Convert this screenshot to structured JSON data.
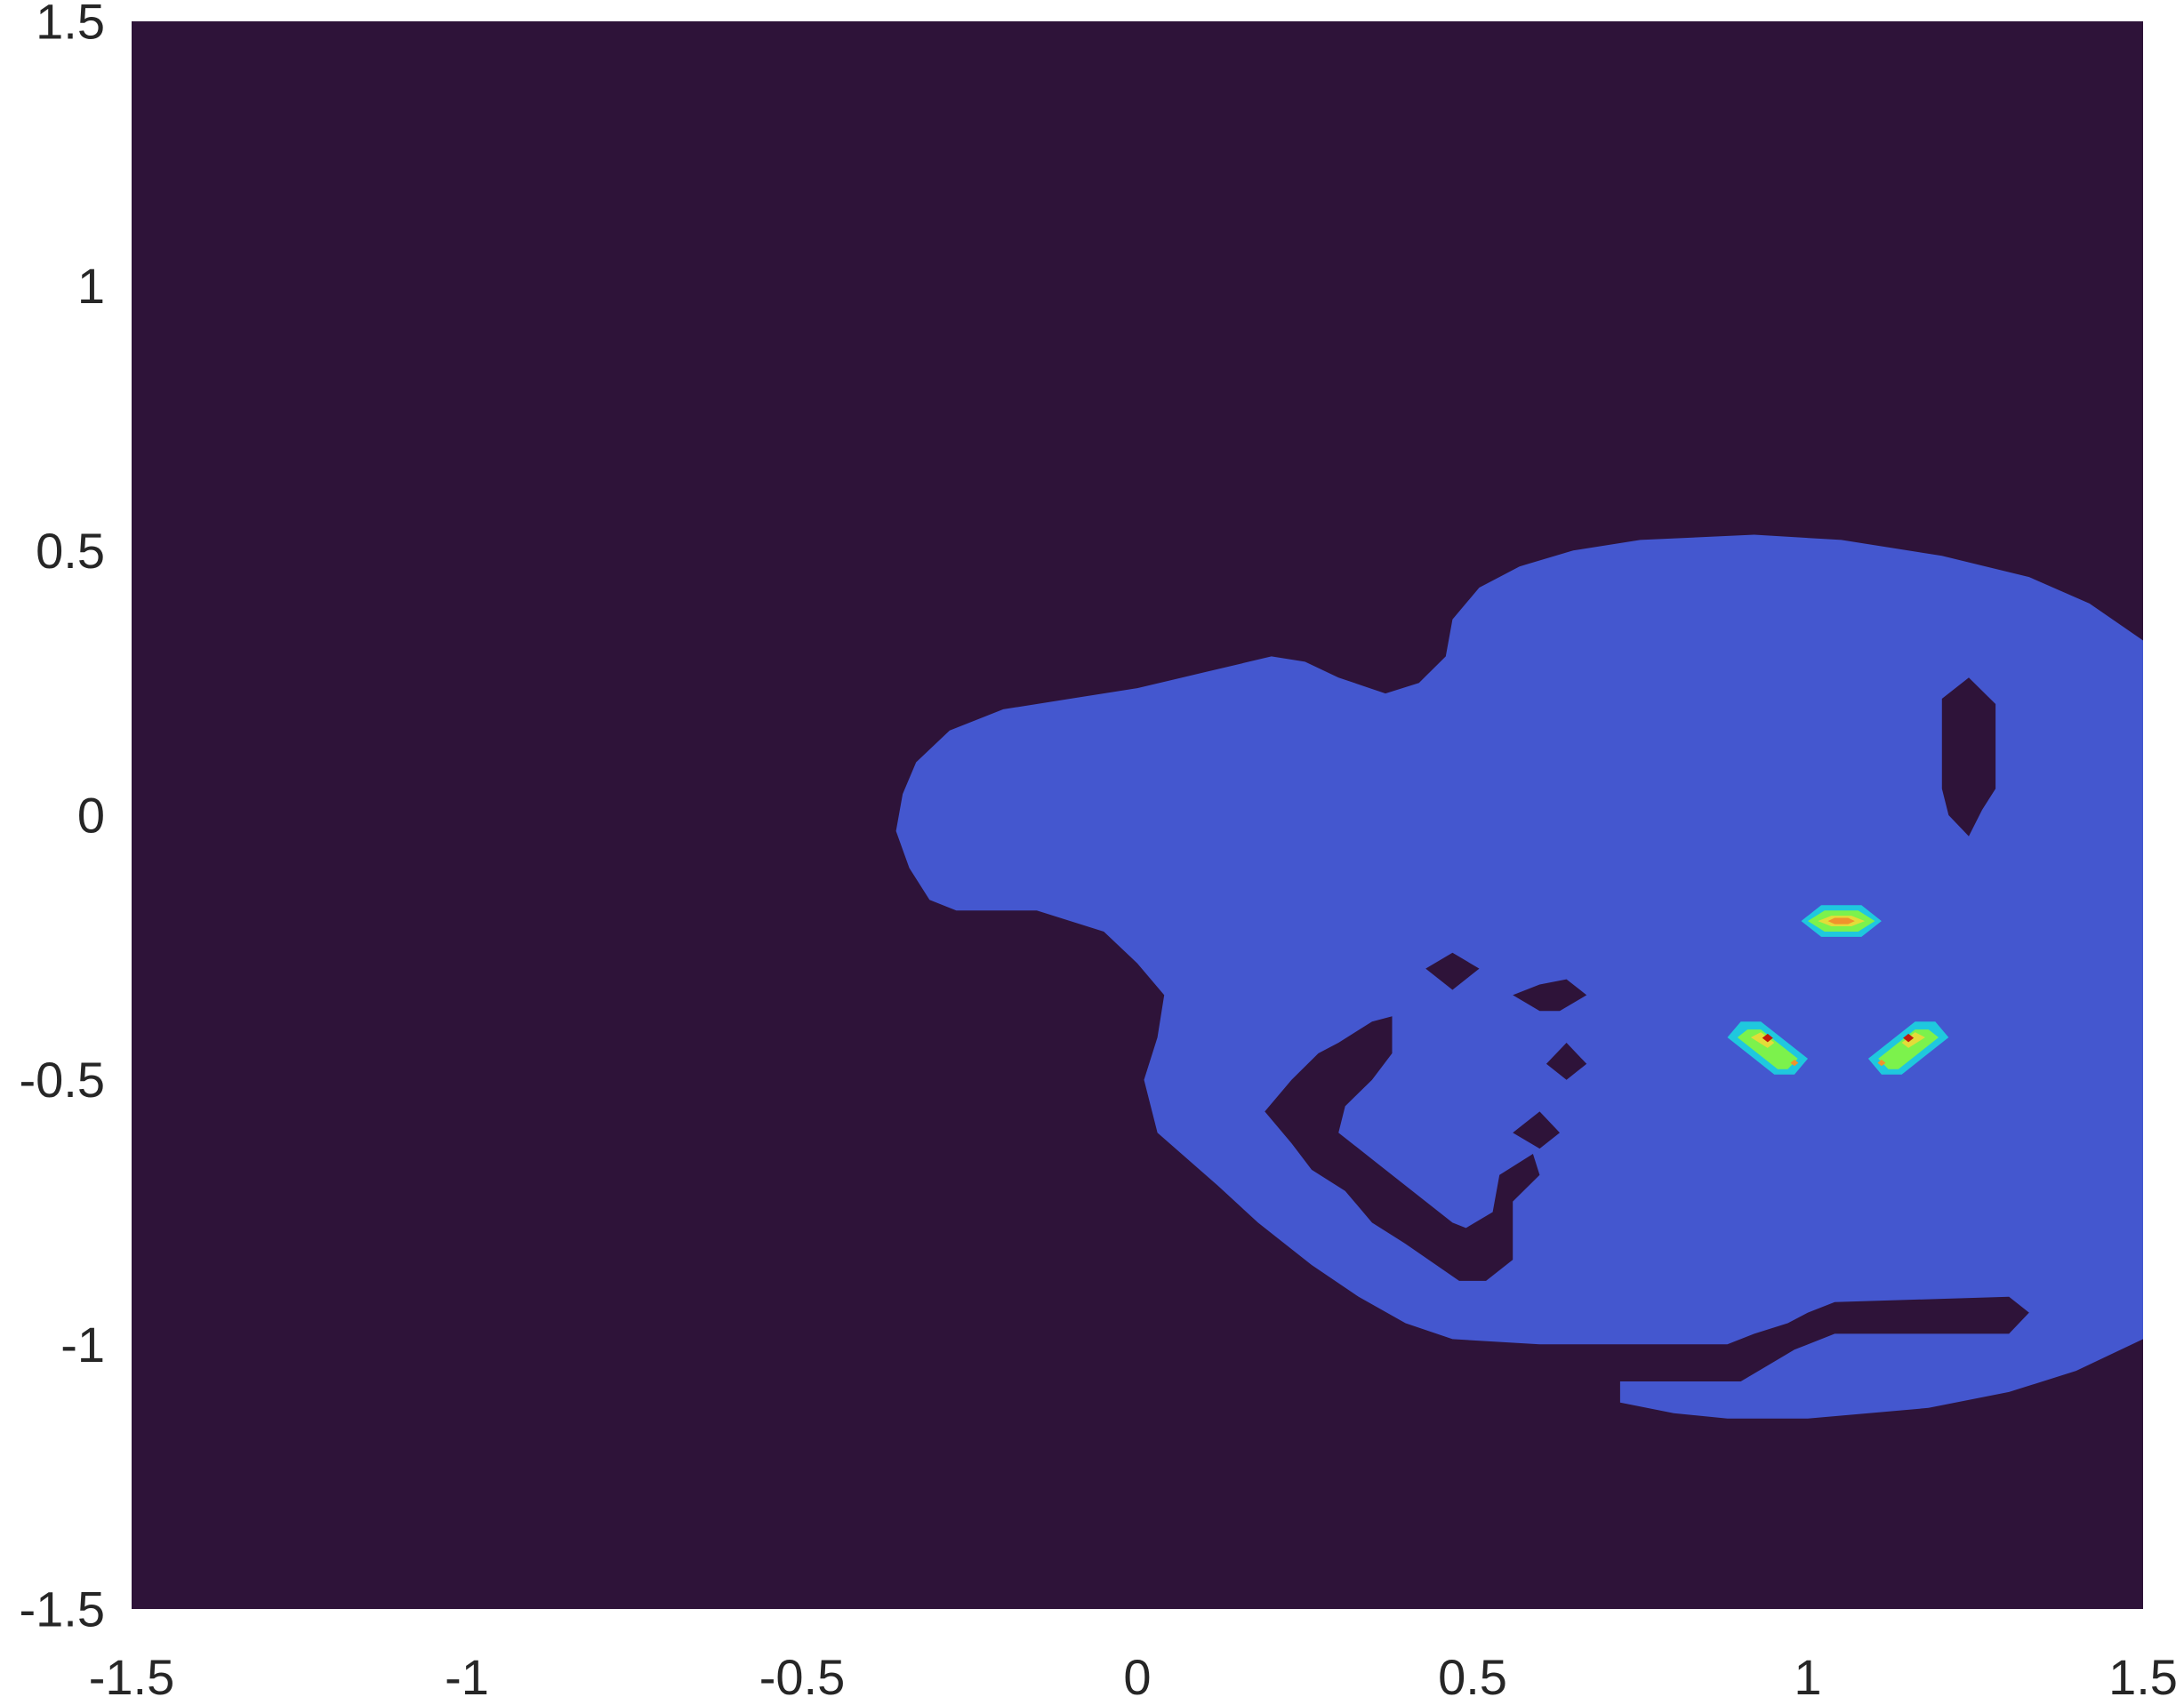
{
  "chart_data": {
    "type": "heatmap",
    "subtype": "filled-contour",
    "title": "",
    "xlabel": "",
    "ylabel": "",
    "xlim": [
      -1.5,
      1.5
    ],
    "ylim": [
      -1.5,
      1.5
    ],
    "x_ticks": [
      -1.5,
      -1,
      -0.5,
      0,
      0.5,
      1,
      1.5
    ],
    "x_tick_labels": [
      "-1.5",
      "-1",
      "-0.5",
      "0",
      "0.5",
      "1",
      "1.5"
    ],
    "y_ticks": [
      -1.5,
      -1,
      -0.5,
      0,
      0.5,
      1,
      1.5
    ],
    "y_tick_labels": [
      "-1.5",
      "-1",
      "-0.5",
      "0",
      "0.5",
      "1",
      "1.5"
    ],
    "grid": false,
    "legend": "none",
    "colors": {
      "background_level": "#2e1339",
      "main_level": "#4457cf",
      "level_cyan": "#1fc8de",
      "level_green": "#7cf24c",
      "level_yellow": "#e3dc39",
      "level_orange": "#f0932c",
      "level_red": "#c11a0a",
      "peak": "#6b0a05"
    },
    "regions": [
      {
        "name": "main-region",
        "level": "main_level",
        "polygon": [
          [
            0.92,
            0.53
          ],
          [
            1.05,
            0.52
          ],
          [
            1.2,
            0.49
          ],
          [
            1.33,
            0.45
          ],
          [
            1.42,
            0.4
          ],
          [
            1.5,
            0.33
          ],
          [
            1.5,
            -0.99
          ],
          [
            1.4,
            -1.05
          ],
          [
            1.3,
            -1.09
          ],
          [
            1.18,
            -1.12
          ],
          [
            1.0,
            -1.14
          ],
          [
            0.88,
            -1.14
          ],
          [
            0.8,
            -1.13
          ],
          [
            0.72,
            -1.11
          ],
          [
            0.72,
            -1.07
          ],
          [
            0.84,
            -1.07
          ],
          [
            0.9,
            -1.07
          ],
          [
            0.94,
            -1.04
          ],
          [
            0.98,
            -1.01
          ],
          [
            1.04,
            -0.98
          ],
          [
            1.3,
            -0.98
          ],
          [
            1.33,
            -0.94
          ],
          [
            1.3,
            -0.91
          ],
          [
            1.04,
            -0.92
          ],
          [
            1.0,
            -0.94
          ],
          [
            0.97,
            -0.96
          ],
          [
            0.92,
            -0.98
          ],
          [
            0.88,
            -1.0
          ],
          [
            0.6,
            -1.0
          ],
          [
            0.47,
            -0.99
          ],
          [
            0.4,
            -0.96
          ],
          [
            0.33,
            -0.91
          ],
          [
            0.26,
            -0.85
          ],
          [
            0.18,
            -0.77
          ],
          [
            0.12,
            -0.7
          ],
          [
            0.03,
            -0.6
          ],
          [
            0.01,
            -0.5
          ],
          [
            0.03,
            -0.42
          ],
          [
            0.04,
            -0.34
          ],
          [
            0.0,
            -0.28
          ],
          [
            -0.05,
            -0.22
          ],
          [
            -0.15,
            -0.18
          ],
          [
            -0.27,
            -0.18
          ],
          [
            -0.31,
            -0.16
          ],
          [
            -0.34,
            -0.1
          ],
          [
            -0.36,
            -0.03
          ],
          [
            -0.35,
            0.04
          ],
          [
            -0.33,
            0.1
          ],
          [
            -0.28,
            0.16
          ],
          [
            -0.2,
            0.2
          ],
          [
            -0.1,
            0.22
          ],
          [
            0.0,
            0.24
          ],
          [
            0.1,
            0.27
          ],
          [
            0.2,
            0.3
          ],
          [
            0.25,
            0.29
          ],
          [
            0.3,
            0.26
          ],
          [
            0.37,
            0.23
          ],
          [
            0.42,
            0.25
          ],
          [
            0.46,
            0.3
          ],
          [
            0.47,
            0.37
          ],
          [
            0.51,
            0.43
          ],
          [
            0.57,
            0.47
          ],
          [
            0.65,
            0.5
          ],
          [
            0.75,
            0.52
          ]
        ]
      },
      {
        "name": "hole-top-right",
        "level": "background_level",
        "polygon": [
          [
            1.24,
            0.26
          ],
          [
            1.28,
            0.21
          ],
          [
            1.28,
            0.05
          ],
          [
            1.26,
            0.01
          ],
          [
            1.24,
            -0.04
          ],
          [
            1.21,
            0.0
          ],
          [
            1.2,
            0.05
          ],
          [
            1.2,
            0.22
          ]
        ]
      },
      {
        "name": "hole-diamond-small",
        "level": "background_level",
        "polygon": [
          [
            0.47,
            -0.26
          ],
          [
            0.51,
            -0.29
          ],
          [
            0.47,
            -0.33
          ],
          [
            0.43,
            -0.29
          ]
        ]
      },
      {
        "name": "hole-sliver",
        "level": "background_level",
        "polygon": [
          [
            0.56,
            -0.34
          ],
          [
            0.6,
            -0.32
          ],
          [
            0.64,
            -0.31
          ],
          [
            0.67,
            -0.34
          ],
          [
            0.63,
            -0.37
          ],
          [
            0.6,
            -0.37
          ]
        ]
      },
      {
        "name": "hole-diamond-mid",
        "level": "background_level",
        "polygon": [
          [
            0.64,
            -0.43
          ],
          [
            0.67,
            -0.47
          ],
          [
            0.64,
            -0.5
          ],
          [
            0.61,
            -0.47
          ]
        ]
      },
      {
        "name": "hole-diamond-low",
        "level": "background_level",
        "polygon": [
          [
            0.6,
            -0.56
          ],
          [
            0.63,
            -0.6
          ],
          [
            0.6,
            -0.63
          ],
          [
            0.56,
            -0.6
          ]
        ]
      },
      {
        "name": "hole-hook",
        "level": "background_level",
        "polygon": [
          [
            0.38,
            -0.38
          ],
          [
            0.38,
            -0.45
          ],
          [
            0.35,
            -0.5
          ],
          [
            0.31,
            -0.55
          ],
          [
            0.3,
            -0.6
          ],
          [
            0.35,
            -0.65
          ],
          [
            0.4,
            -0.7
          ],
          [
            0.47,
            -0.77
          ],
          [
            0.49,
            -0.78
          ],
          [
            0.53,
            -0.75
          ],
          [
            0.54,
            -0.68
          ],
          [
            0.59,
            -0.64
          ],
          [
            0.6,
            -0.68
          ],
          [
            0.56,
            -0.73
          ],
          [
            0.56,
            -0.84
          ],
          [
            0.52,
            -0.88
          ],
          [
            0.48,
            -0.88
          ],
          [
            0.4,
            -0.81
          ],
          [
            0.35,
            -0.77
          ],
          [
            0.31,
            -0.71
          ],
          [
            0.26,
            -0.67
          ],
          [
            0.23,
            -0.62
          ],
          [
            0.19,
            -0.56
          ],
          [
            0.23,
            -0.5
          ],
          [
            0.27,
            -0.45
          ],
          [
            0.3,
            -0.43
          ],
          [
            0.35,
            -0.39
          ]
        ]
      }
    ],
    "peaks": [
      {
        "name": "peak-top",
        "x": 1.05,
        "y": -0.2,
        "rings": [
          {
            "level": "level_cyan",
            "polygon": [
              [
                0.99,
                -0.2
              ],
              [
                1.02,
                -0.17
              ],
              [
                1.08,
                -0.17
              ],
              [
                1.11,
                -0.2
              ],
              [
                1.08,
                -0.23
              ],
              [
                1.02,
                -0.23
              ]
            ]
          },
          {
            "level": "level_green",
            "polygon": [
              [
                1.0,
                -0.2
              ],
              [
                1.025,
                -0.18
              ],
              [
                1.075,
                -0.18
              ],
              [
                1.1,
                -0.2
              ],
              [
                1.075,
                -0.22
              ],
              [
                1.025,
                -0.22
              ]
            ]
          },
          {
            "level": "level_yellow",
            "polygon": [
              [
                1.015,
                -0.2
              ],
              [
                1.035,
                -0.19
              ],
              [
                1.065,
                -0.19
              ],
              [
                1.085,
                -0.2
              ],
              [
                1.065,
                -0.21
              ],
              [
                1.035,
                -0.21
              ]
            ]
          },
          {
            "level": "level_orange",
            "polygon": [
              [
                1.03,
                -0.2
              ],
              [
                1.04,
                -0.194
              ],
              [
                1.06,
                -0.194
              ],
              [
                1.07,
                -0.2
              ],
              [
                1.06,
                -0.206
              ],
              [
                1.04,
                -0.206
              ]
            ]
          }
        ]
      },
      {
        "name": "peak-left",
        "x": 0.94,
        "y": -0.42,
        "rings": [
          {
            "level": "level_cyan",
            "polygon": [
              [
                0.93,
                -0.39
              ],
              [
                1.0,
                -0.46
              ],
              [
                0.98,
                -0.49
              ],
              [
                0.95,
                -0.49
              ],
              [
                0.88,
                -0.42
              ],
              [
                0.9,
                -0.39
              ]
            ]
          },
          {
            "level": "level_green",
            "polygon": [
              [
                0.93,
                -0.405
              ],
              [
                0.985,
                -0.46
              ],
              [
                0.97,
                -0.48
              ],
              [
                0.955,
                -0.48
              ],
              [
                0.895,
                -0.42
              ],
              [
                0.91,
                -0.405
              ]
            ]
          },
          {
            "level": "level_yellow",
            "polygon": [
              [
                0.93,
                -0.41
              ],
              [
                0.95,
                -0.43
              ],
              [
                0.94,
                -0.44
              ],
              [
                0.915,
                -0.42
              ]
            ]
          },
          {
            "level": "level_red",
            "polygon": [
              [
                0.94,
                -0.413
              ],
              [
                0.948,
                -0.421
              ],
              [
                0.94,
                -0.429
              ],
              [
                0.932,
                -0.421
              ]
            ]
          },
          {
            "level": "level_orange",
            "polygon": [
              [
                0.98,
                -0.462
              ],
              [
                0.986,
                -0.468
              ],
              [
                0.98,
                -0.474
              ],
              [
                0.974,
                -0.468
              ]
            ]
          }
        ]
      },
      {
        "name": "peak-right",
        "x": 1.15,
        "y": -0.42,
        "rings": [
          {
            "level": "level_cyan",
            "polygon": [
              [
                1.16,
                -0.39
              ],
              [
                1.09,
                -0.46
              ],
              [
                1.11,
                -0.49
              ],
              [
                1.14,
                -0.49
              ],
              [
                1.21,
                -0.42
              ],
              [
                1.19,
                -0.39
              ]
            ]
          },
          {
            "level": "level_green",
            "polygon": [
              [
                1.16,
                -0.405
              ],
              [
                1.105,
                -0.46
              ],
              [
                1.12,
                -0.48
              ],
              [
                1.135,
                -0.48
              ],
              [
                1.195,
                -0.42
              ],
              [
                1.18,
                -0.405
              ]
            ]
          },
          {
            "level": "level_yellow",
            "polygon": [
              [
                1.16,
                -0.41
              ],
              [
                1.14,
                -0.43
              ],
              [
                1.15,
                -0.44
              ],
              [
                1.175,
                -0.42
              ]
            ]
          },
          {
            "level": "level_red",
            "polygon": [
              [
                1.15,
                -0.413
              ],
              [
                1.142,
                -0.421
              ],
              [
                1.15,
                -0.429
              ],
              [
                1.158,
                -0.421
              ]
            ]
          },
          {
            "level": "level_orange",
            "polygon": [
              [
                1.11,
                -0.462
              ],
              [
                1.104,
                -0.468
              ],
              [
                1.11,
                -0.474
              ],
              [
                1.116,
                -0.468
              ]
            ]
          }
        ]
      }
    ]
  }
}
